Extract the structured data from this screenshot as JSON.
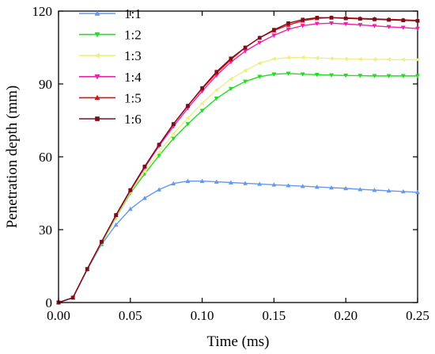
{
  "chart_data": {
    "type": "line",
    "title": "",
    "xlabel": "Time (ms)",
    "ylabel": "Penetration depth (mm)",
    "xlim": [
      0,
      0.25
    ],
    "ylim": [
      0,
      120
    ],
    "xticks": [
      0.0,
      0.05,
      0.1,
      0.15,
      0.2,
      0.25
    ],
    "xtick_labels": [
      "0.00",
      "0.05",
      "0.10",
      "0.15",
      "0.20",
      "0.25"
    ],
    "yticks": [
      0,
      30,
      60,
      90,
      120
    ],
    "ytick_labels": [
      "0",
      "30",
      "60",
      "90",
      "120"
    ],
    "grid": false,
    "legend_position": "top-left",
    "x": [
      0,
      0.01,
      0.02,
      0.03,
      0.04,
      0.05,
      0.06,
      0.07,
      0.08,
      0.09,
      0.1,
      0.11,
      0.12,
      0.13,
      0.14,
      0.15,
      0.16,
      0.17,
      0.18,
      0.19,
      0.2,
      0.21,
      0.22,
      0.23,
      0.24,
      0.25
    ],
    "series": [
      {
        "name": "1:1",
        "color": "#6699ee",
        "marker": "triangle-up",
        "values": [
          0,
          2,
          13.5,
          24,
          32,
          38.5,
          43,
          46.5,
          49,
          50,
          50,
          49.7,
          49.4,
          49.1,
          48.8,
          48.5,
          48.2,
          47.9,
          47.6,
          47.3,
          47,
          46.6,
          46.3,
          46,
          45.7,
          45.4
        ]
      },
      {
        "name": "1:2",
        "color": "#22dd22",
        "marker": "triangle-down",
        "values": [
          0,
          2,
          13.7,
          24.5,
          35,
          45,
          53,
          60.5,
          67.5,
          73.5,
          79,
          84,
          88,
          91,
          93,
          94,
          94.3,
          94,
          93.8,
          93.6,
          93.5,
          93.4,
          93.3,
          93.3,
          93.3,
          93.3
        ]
      },
      {
        "name": "1:3",
        "color": "#eeee88",
        "marker": "triangle-left",
        "values": [
          0,
          2,
          13.7,
          24.7,
          35.3,
          45.5,
          54,
          62,
          69.5,
          76,
          82,
          87.5,
          92,
          95.5,
          98.5,
          100.3,
          100.8,
          100.9,
          100.7,
          100.5,
          100.3,
          100.2,
          100.1,
          100.1,
          100,
          100
        ]
      },
      {
        "name": "1:4",
        "color": "#ee22aa",
        "marker": "triangle-down",
        "values": [
          0,
          2,
          13.8,
          25,
          35.8,
          46,
          55.5,
          64.5,
          72.5,
          80,
          87,
          93.5,
          99,
          103.5,
          107,
          110,
          112.5,
          114,
          114.8,
          115,
          114.7,
          114.3,
          113.9,
          113.5,
          113.2,
          112.8
        ]
      },
      {
        "name": "1:5",
        "color": "#dd1111",
        "marker": "triangle-up",
        "values": [
          0,
          2,
          13.8,
          25,
          36,
          46.3,
          56,
          65,
          73.5,
          81,
          88,
          94.5,
          100,
          105,
          109,
          112,
          114.3,
          116,
          117,
          117.3,
          117.2,
          117,
          116.8,
          116.6,
          116.4,
          116.2
        ]
      },
      {
        "name": "1:6",
        "color": "#7a0f1e",
        "marker": "square",
        "values": [
          0,
          2,
          13.8,
          25,
          36,
          46.3,
          56,
          65,
          73.5,
          81,
          88.3,
          95,
          100.5,
          105,
          109,
          112.3,
          115,
          116.5,
          117.3,
          117.3,
          117,
          116.8,
          116.6,
          116.4,
          116.2,
          116
        ]
      }
    ]
  }
}
